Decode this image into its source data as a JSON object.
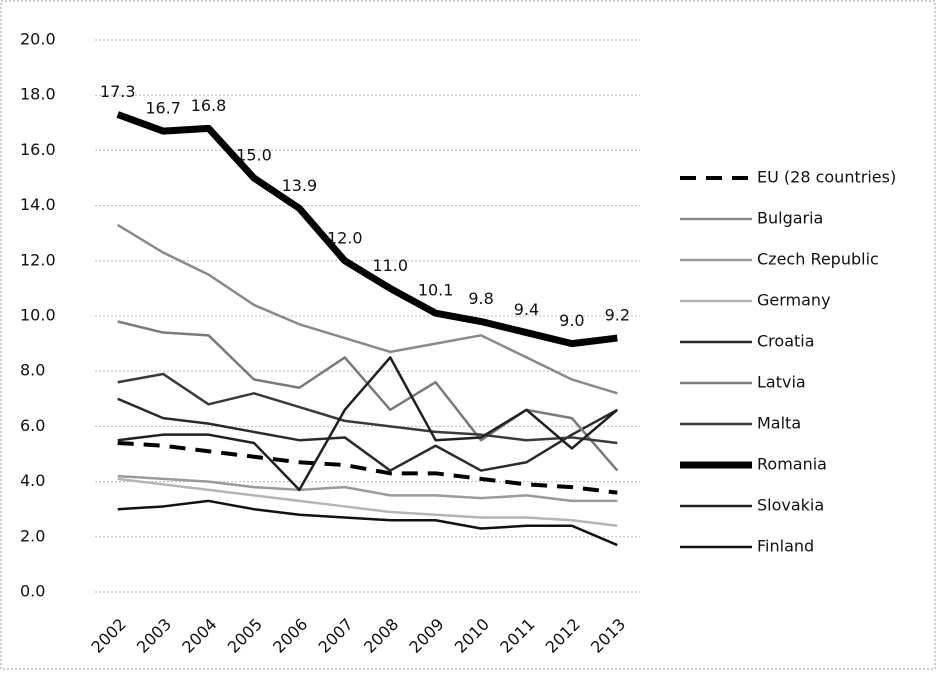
{
  "chart_data": {
    "type": "line",
    "categories": [
      "2002",
      "2003",
      "2004",
      "2005",
      "2006",
      "2007",
      "2008",
      "2009",
      "2010",
      "2011",
      "2012",
      "2013"
    ],
    "ylim": [
      0,
      20
    ],
    "yticks": [
      {
        "value": 0,
        "label": "0.0"
      },
      {
        "value": 2,
        "label": "2.0"
      },
      {
        "value": 4,
        "label": "4.0"
      },
      {
        "value": 6,
        "label": "6.0"
      },
      {
        "value": 8,
        "label": "8.0"
      },
      {
        "value": 10,
        "label": "10.0"
      },
      {
        "value": 12,
        "label": "12.0"
      },
      {
        "value": 14,
        "label": "14.0"
      },
      {
        "value": 16,
        "label": "16.0"
      },
      {
        "value": 18,
        "label": "18.0"
      },
      {
        "value": 20,
        "label": "20.0"
      }
    ],
    "grid": true,
    "legend": "right",
    "series": [
      {
        "name": "EU (28 countries)",
        "color": "#000000",
        "dashed": true,
        "values": [
          5.4,
          5.3,
          5.1,
          4.9,
          4.7,
          4.6,
          4.3,
          4.3,
          4.1,
          3.9,
          3.8,
          3.6
        ]
      },
      {
        "name": "Bulgaria",
        "color": "#8a8a8a",
        "values": [
          13.3,
          12.3,
          11.5,
          10.4,
          9.7,
          9.2,
          8.7,
          9.0,
          9.3,
          8.5,
          7.7,
          7.2
        ]
      },
      {
        "name": "Czech Republic",
        "color": "#9a9a9a",
        "values": [
          4.2,
          4.1,
          4.0,
          3.8,
          3.7,
          3.8,
          3.5,
          3.5,
          3.4,
          3.5,
          3.3,
          3.3
        ]
      },
      {
        "name": "Germany",
        "color": "#b5b5b5",
        "values": [
          4.1,
          3.9,
          3.7,
          3.5,
          3.3,
          3.1,
          2.9,
          2.8,
          2.7,
          2.7,
          2.6,
          2.4
        ]
      },
      {
        "name": "Croatia",
        "color": "#2a2a2a",
        "values": [
          7.0,
          6.3,
          6.1,
          5.8,
          5.5,
          5.6,
          4.4,
          5.3,
          4.4,
          4.7,
          5.7,
          6.6
        ]
      },
      {
        "name": "Latvia",
        "color": "#7a7a7a",
        "values": [
          9.8,
          9.4,
          9.3,
          7.7,
          7.4,
          8.5,
          6.6,
          7.6,
          5.5,
          6.6,
          6.3,
          4.4
        ]
      },
      {
        "name": "Malta",
        "color": "#3a3a3a",
        "values": [
          7.6,
          7.9,
          6.8,
          7.2,
          6.7,
          6.2,
          6.0,
          5.8,
          5.7,
          5.5,
          5.6,
          5.4
        ]
      },
      {
        "name": "Romania",
        "color": "#000000",
        "thick": true,
        "values": [
          17.3,
          16.7,
          16.8,
          15.0,
          13.9,
          12.0,
          11.0,
          10.1,
          9.8,
          9.4,
          9.0,
          9.2
        ],
        "value_labels": [
          "17.3",
          "16.7",
          "16.8",
          "15.0",
          "13.9",
          "12.0",
          "11.0",
          "10.1",
          "9.8",
          "9.4",
          "9.0",
          "9.2"
        ]
      },
      {
        "name": "Slovakia",
        "color": "#202020",
        "values": [
          5.5,
          5.7,
          5.7,
          5.4,
          3.7,
          6.6,
          8.5,
          5.5,
          5.6,
          6.6,
          5.2,
          6.6
        ]
      },
      {
        "name": "Finland",
        "color": "#111111",
        "values": [
          3.0,
          3.1,
          3.3,
          3.0,
          2.8,
          2.7,
          2.6,
          2.6,
          2.3,
          2.4,
          2.4,
          1.7
        ]
      }
    ]
  }
}
